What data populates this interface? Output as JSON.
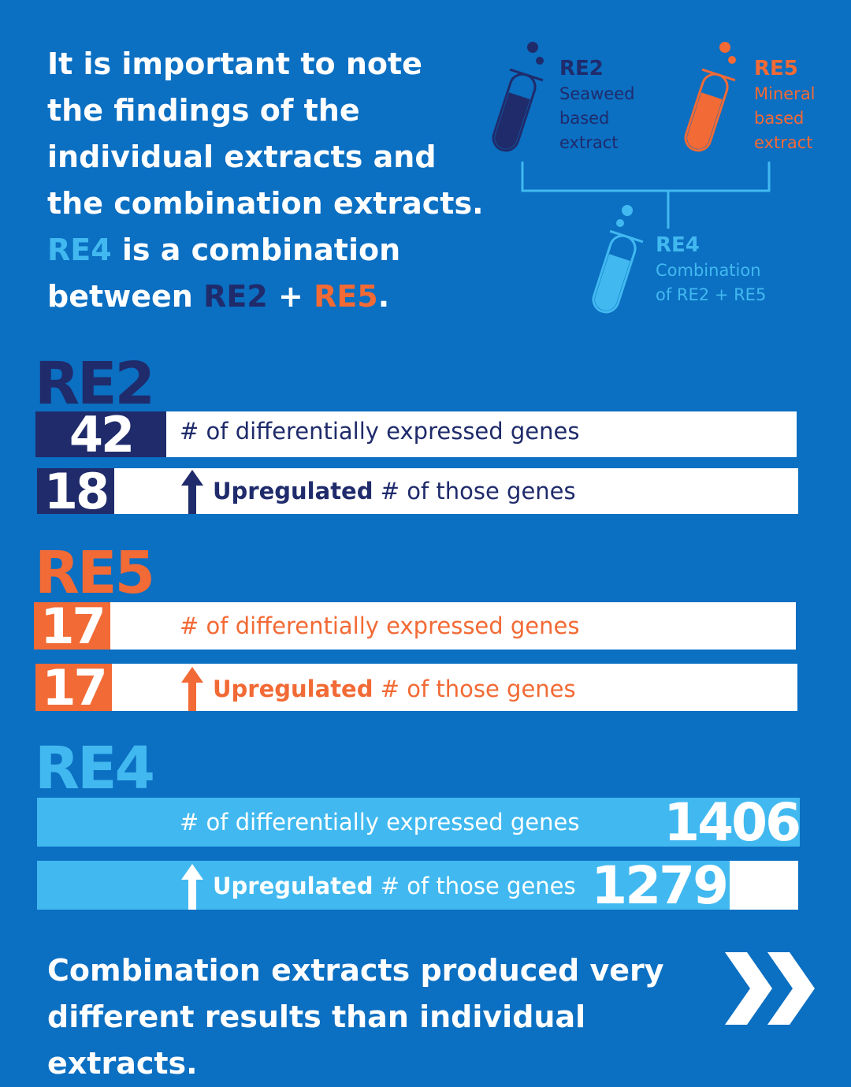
{
  "intro": {
    "text_before": "It is important to note the findings of the individual extracts and the combination extracts. ",
    "re4": "RE4",
    "text_middle": " is a combination between ",
    "re2": "RE2",
    "plus": " + ",
    "re5": "RE5",
    "period": "."
  },
  "tubes": {
    "re2": {
      "name": "RE2",
      "desc1": "Seaweed",
      "desc2": "based",
      "desc3": "extract"
    },
    "re5": {
      "name": "RE5",
      "desc1": "Mineral",
      "desc2": "based",
      "desc3": "extract"
    },
    "re4": {
      "name": "RE4",
      "desc1": "Combination",
      "desc2": "of RE2 + RE5"
    }
  },
  "colors": {
    "background": "#0b6fc2",
    "re2": "#1f2b6b",
    "re5": "#f26a35",
    "re4": "#41b9f0"
  },
  "chart_data": {
    "type": "table",
    "series": [
      {
        "name": "RE2",
        "deg_count": 42,
        "upregulated": 18,
        "deg_label": "# of differentially expressed genes",
        "up_label_bold": "Upregulated",
        "up_label_rest": " # of those genes"
      },
      {
        "name": "RE5",
        "deg_count": 17,
        "upregulated": 17,
        "deg_label": "# of differentially expressed genes",
        "up_label_bold": "Upregulated",
        "up_label_rest": " # of those genes"
      },
      {
        "name": "RE4",
        "deg_count": 1406,
        "upregulated": 1279,
        "deg_label": "# of differentially expressed genes",
        "up_label_bold": "Upregulated",
        "up_label_rest": " # of those genes"
      }
    ]
  },
  "conclusion": "Combination extracts produced very different results than individual extracts."
}
